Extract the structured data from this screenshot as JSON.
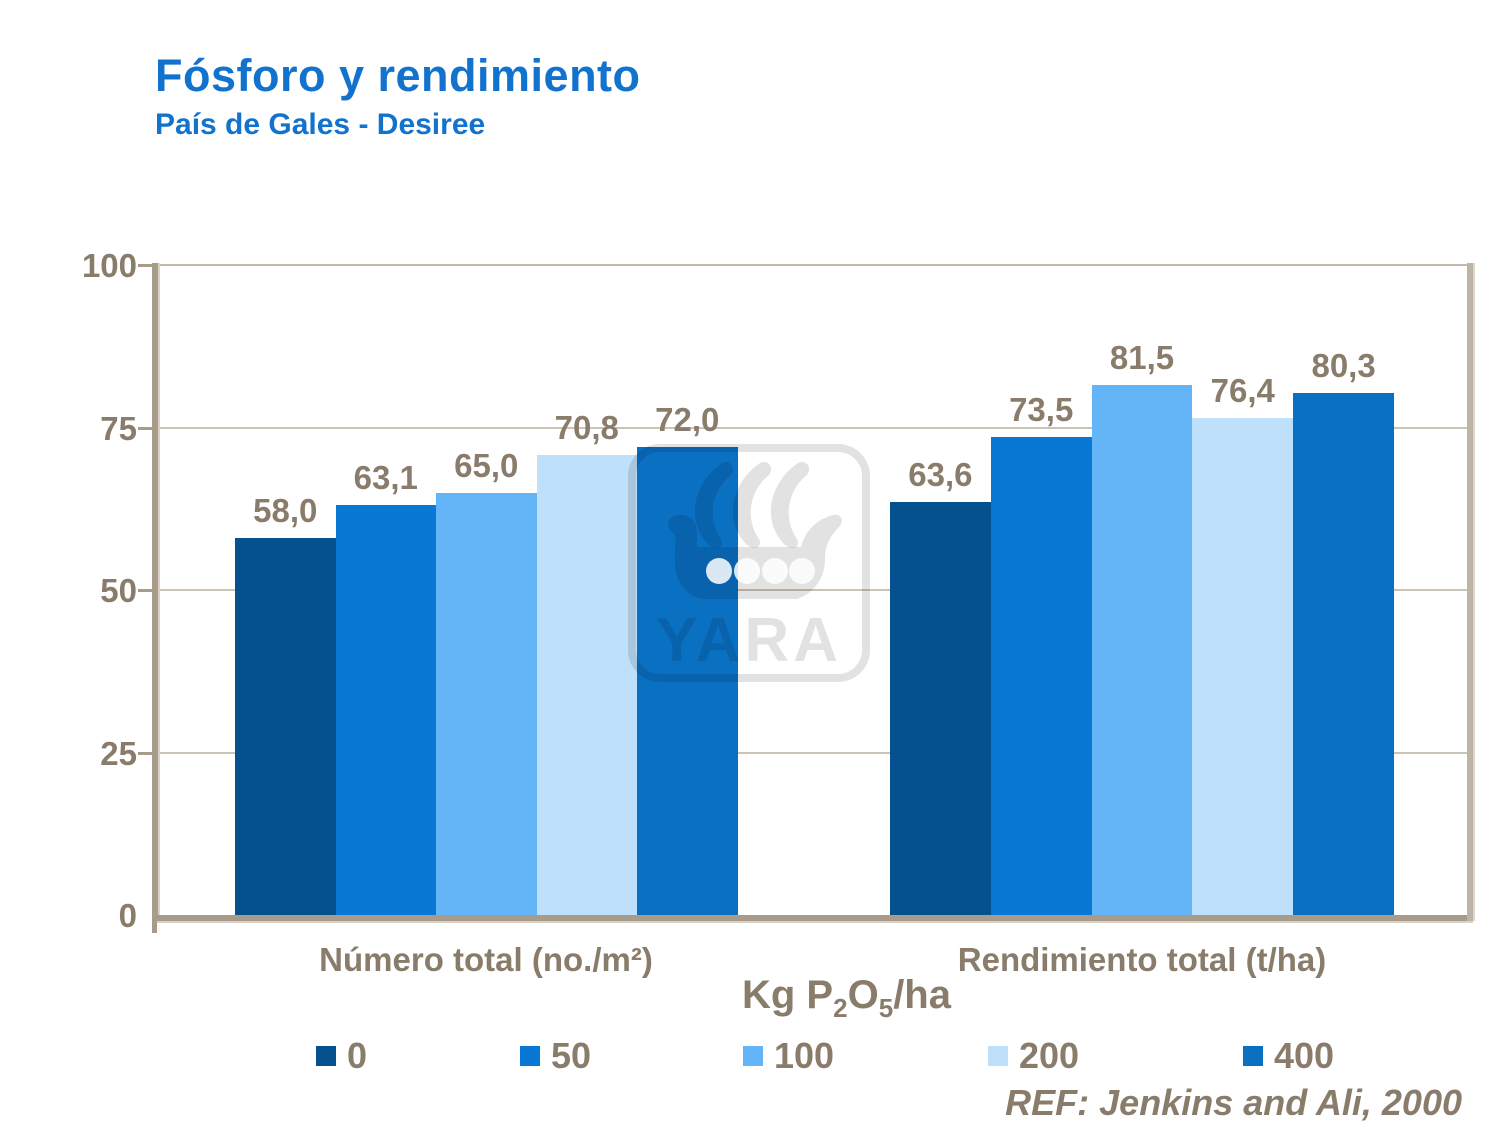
{
  "header": {
    "title": "Fósforo y rendimiento",
    "subtitle": "País de Gales - Desiree",
    "title_color": "#1273CE"
  },
  "chart_data": {
    "type": "bar",
    "title": "Fósforo y rendimiento",
    "subtitle": "País de Gales - Desiree",
    "categories": [
      "Número total (no./m²)",
      "Rendimiento total (t/ha)"
    ],
    "series": [
      {
        "name": "0",
        "color": "#05518F",
        "values": [
          58.0,
          63.6
        ]
      },
      {
        "name": "50",
        "color": "#0878D4",
        "values": [
          63.1,
          73.5
        ]
      },
      {
        "name": "100",
        "color": "#63B5F7",
        "values": [
          65.0,
          81.5
        ]
      },
      {
        "name": "200",
        "color": "#BFE0FB",
        "values": [
          70.8,
          76.4
        ]
      },
      {
        "name": "400",
        "color": "#0A70C2",
        "values": [
          72.0,
          80.3
        ]
      }
    ],
    "value_labels": [
      [
        "58,0",
        "63,1",
        "65,0",
        "70,8",
        "72,0"
      ],
      [
        "63,6",
        "73,5",
        "81,5",
        "76,4",
        "80,3"
      ]
    ],
    "ylim": [
      0,
      100
    ],
    "yticks": [
      0,
      25,
      50,
      75,
      100
    ],
    "grid": true,
    "legend_title": "Kg P2O5/ha",
    "legend_position": "bottom",
    "text_color": "#8A7C6B",
    "axis_color": "#A89B8A",
    "gridline_color": "#CCC3B7"
  },
  "axis": {
    "tick_labels": [
      "0",
      "25",
      "50",
      "75",
      "100"
    ]
  },
  "legend": {
    "title_parts": {
      "pre": "Kg P",
      "sub1": "2",
      "mid": "O",
      "sub2": "5",
      "post": "/ha"
    },
    "items": [
      {
        "label": "0",
        "color": "#05518F"
      },
      {
        "label": "50",
        "color": "#0878D4"
      },
      {
        "label": "100",
        "color": "#63B5F7"
      },
      {
        "label": "200",
        "color": "#BFE0FB"
      },
      {
        "label": "400",
        "color": "#0A70C2"
      }
    ]
  },
  "watermark": {
    "text": "YARA"
  },
  "footer": {
    "ref": "REF: Jenkins and Ali, 2000"
  }
}
